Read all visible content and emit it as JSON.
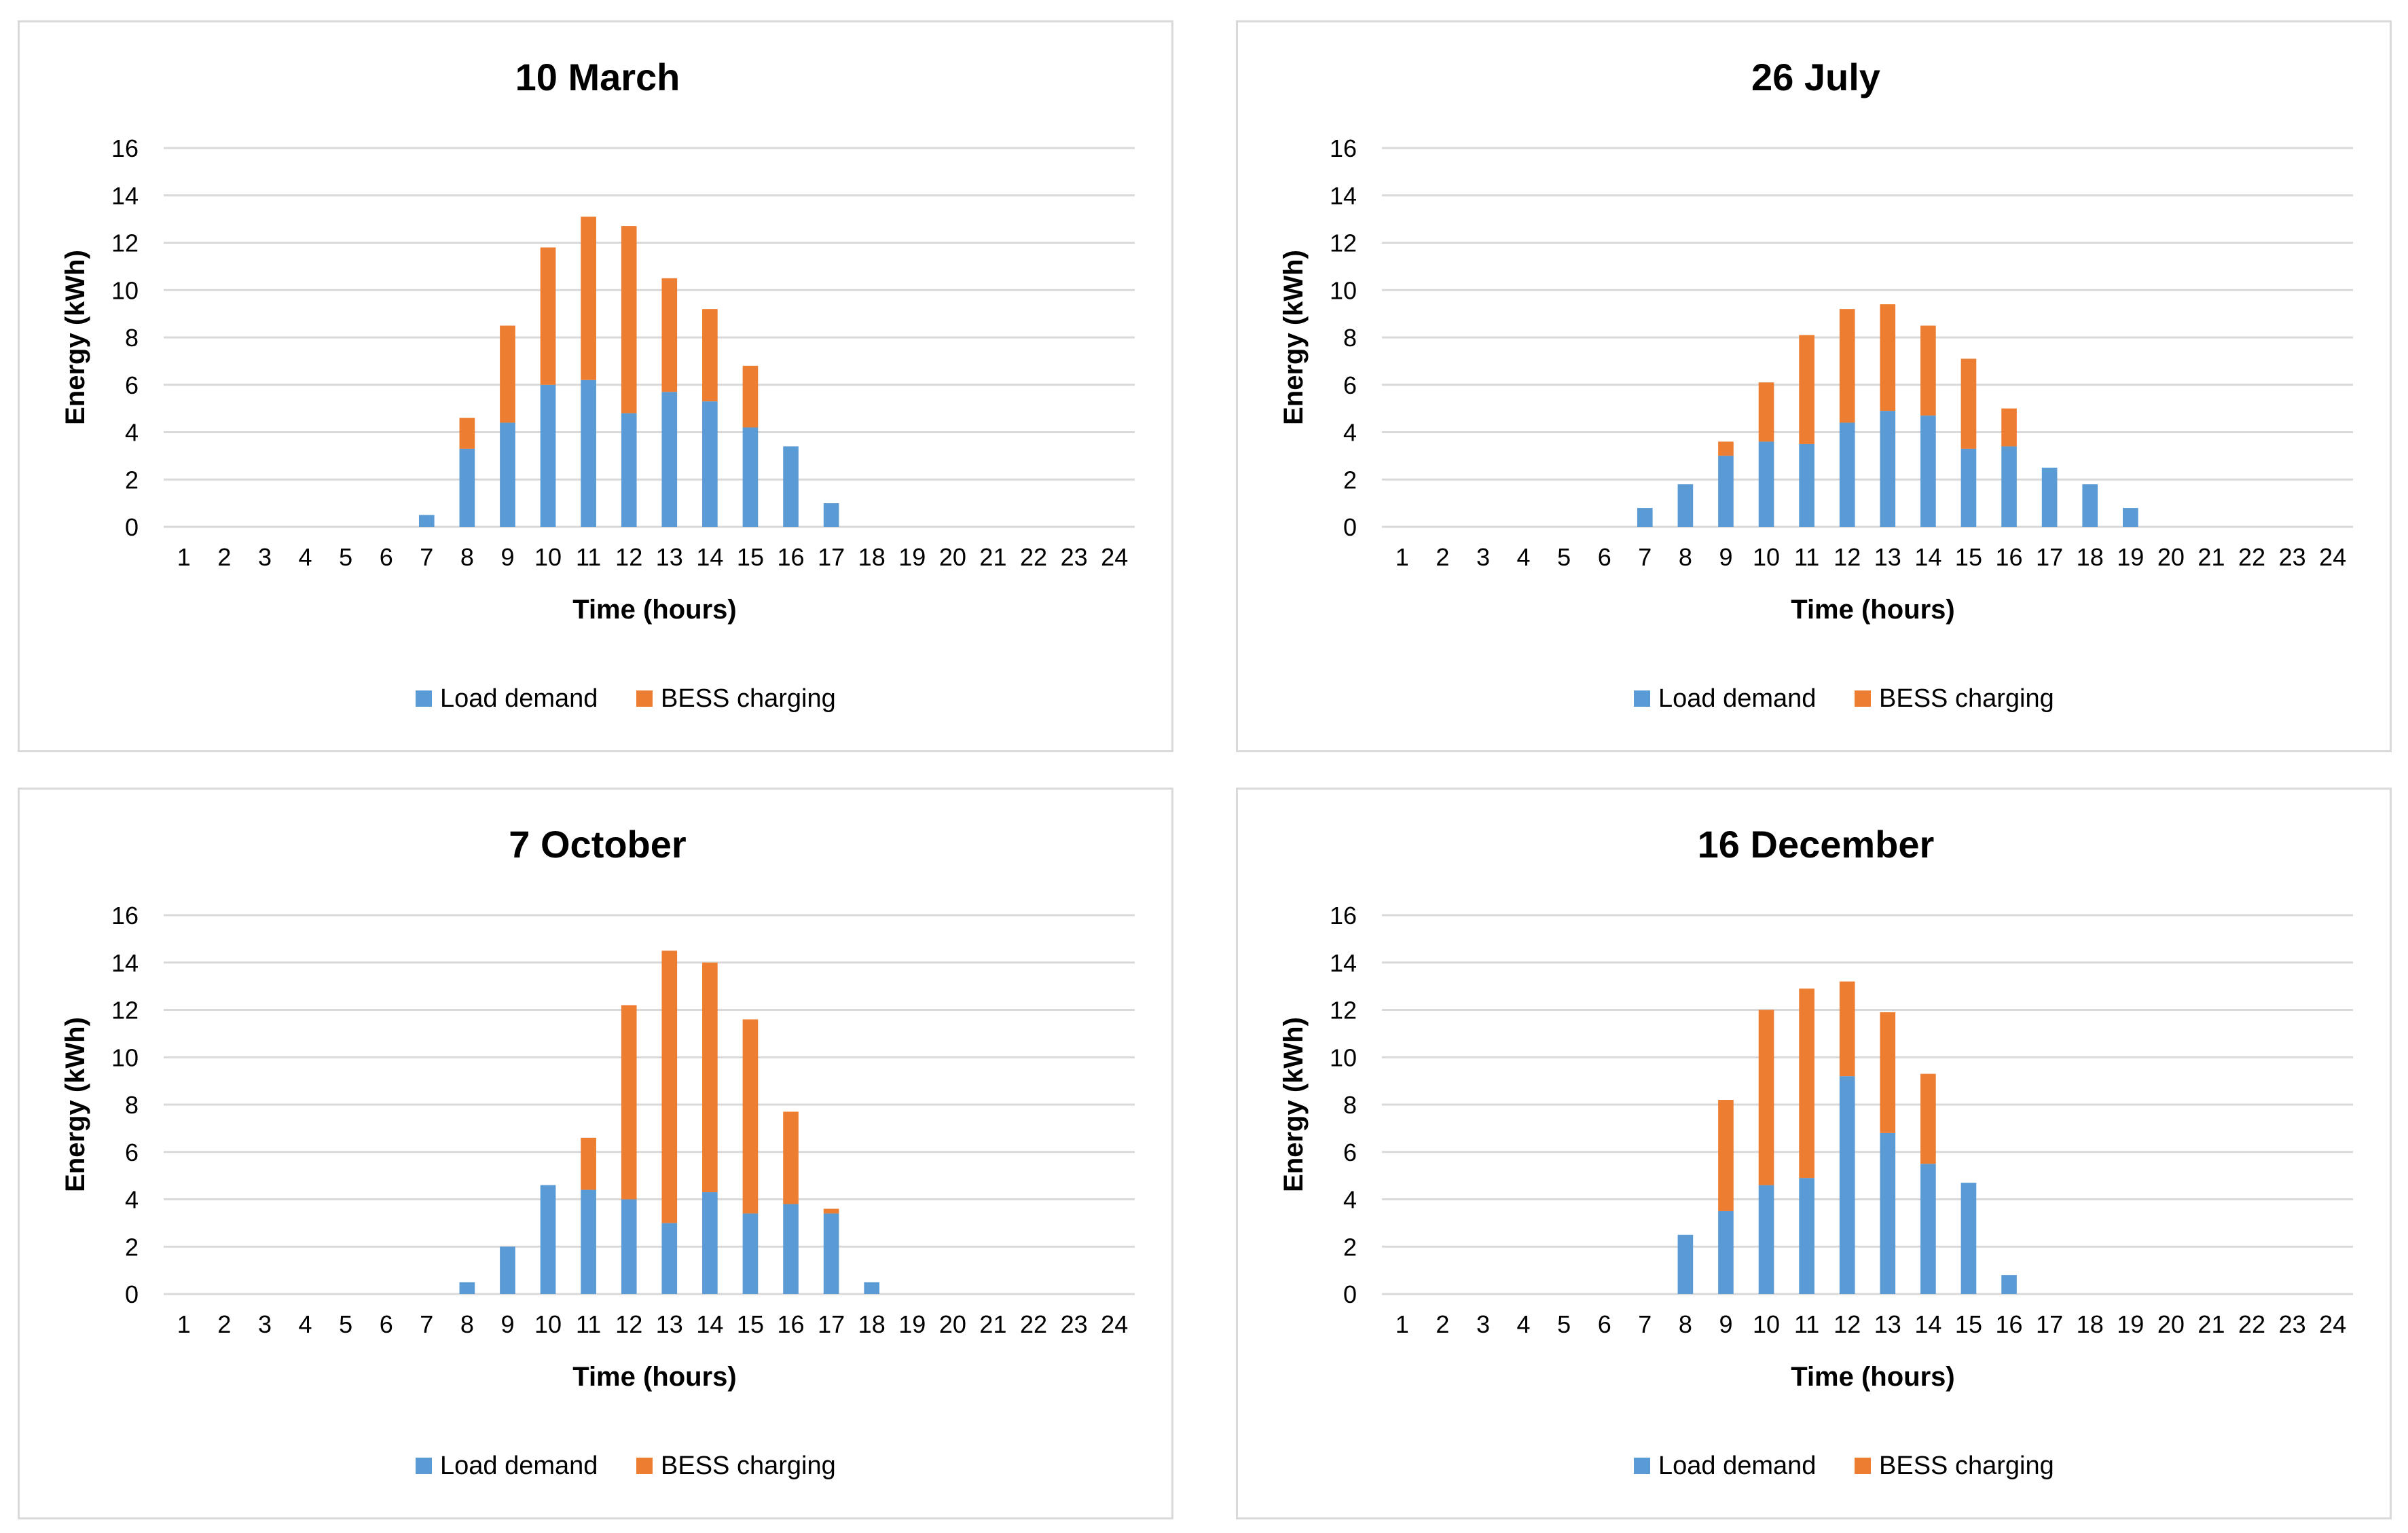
{
  "colors": {
    "load_demand": "#5B9BD5",
    "bess_charging": "#ED7D31",
    "gridline": "#d9d9d9",
    "panel_border": "#d9d9d9"
  },
  "chart_data": [
    {
      "type": "bar",
      "stacked": true,
      "title": "10 March",
      "xlabel": "Time (hours)",
      "ylabel": "Energy (kWh)",
      "ylim": [
        0,
        16
      ],
      "yticks": [
        "0",
        "2",
        "4",
        "6",
        "8",
        "10",
        "12",
        "14",
        "16"
      ],
      "grid": true,
      "legend_position": "bottom",
      "categories": [
        "1",
        "2",
        "3",
        "4",
        "5",
        "6",
        "7",
        "8",
        "9",
        "10",
        "11",
        "12",
        "13",
        "14",
        "15",
        "16",
        "17",
        "18",
        "19",
        "20",
        "21",
        "22",
        "23",
        "24"
      ],
      "series": [
        {
          "name": "Load demand",
          "color": "#5B9BD5",
          "values": [
            0,
            0,
            0,
            0,
            0,
            0,
            0.5,
            3.3,
            4.4,
            6.0,
            6.2,
            4.8,
            5.7,
            5.3,
            4.2,
            3.4,
            1.0,
            0,
            0,
            0,
            0,
            0,
            0,
            0
          ]
        },
        {
          "name": "BESS charging",
          "color": "#ED7D31",
          "values": [
            0,
            0,
            0,
            0,
            0,
            0,
            0,
            1.3,
            4.1,
            5.8,
            6.9,
            7.9,
            4.8,
            3.9,
            2.6,
            0,
            0,
            0,
            0,
            0,
            0,
            0,
            0,
            0
          ]
        }
      ]
    },
    {
      "type": "bar",
      "stacked": true,
      "title": "26 July",
      "xlabel": "Time (hours)",
      "ylabel": "Energy (kWh)",
      "ylim": [
        0,
        16
      ],
      "yticks": [
        "0",
        "2",
        "4",
        "6",
        "8",
        "10",
        "12",
        "14",
        "16"
      ],
      "grid": true,
      "legend_position": "bottom",
      "categories": [
        "1",
        "2",
        "3",
        "4",
        "5",
        "6",
        "7",
        "8",
        "9",
        "10",
        "11",
        "12",
        "13",
        "14",
        "15",
        "16",
        "17",
        "18",
        "19",
        "20",
        "21",
        "22",
        "23",
        "24"
      ],
      "series": [
        {
          "name": "Load demand",
          "color": "#5B9BD5",
          "values": [
            0,
            0,
            0,
            0,
            0,
            0,
            0.8,
            1.8,
            3.0,
            3.6,
            3.5,
            4.4,
            4.9,
            4.7,
            3.3,
            3.4,
            2.5,
            1.8,
            0.8,
            0,
            0,
            0,
            0,
            0
          ]
        },
        {
          "name": "BESS charging",
          "color": "#ED7D31",
          "values": [
            0,
            0,
            0,
            0,
            0,
            0,
            0,
            0,
            0.6,
            2.5,
            4.6,
            4.8,
            4.5,
            3.8,
            3.8,
            1.6,
            0,
            0,
            0,
            0,
            0,
            0,
            0,
            0
          ]
        }
      ]
    },
    {
      "type": "bar",
      "stacked": true,
      "title": "7 October",
      "xlabel": "Time (hours)",
      "ylabel": "Energy (kWh)",
      "ylim": [
        0,
        16
      ],
      "yticks": [
        "0",
        "2",
        "4",
        "6",
        "8",
        "10",
        "12",
        "14",
        "16"
      ],
      "grid": true,
      "legend_position": "bottom",
      "categories": [
        "1",
        "2",
        "3",
        "4",
        "5",
        "6",
        "7",
        "8",
        "9",
        "10",
        "11",
        "12",
        "13",
        "14",
        "15",
        "16",
        "17",
        "18",
        "19",
        "20",
        "21",
        "22",
        "23",
        "24"
      ],
      "series": [
        {
          "name": "Load demand",
          "color": "#5B9BD5",
          "values": [
            0,
            0,
            0,
            0,
            0,
            0,
            0,
            0.5,
            2.0,
            4.6,
            4.4,
            4.0,
            3.0,
            4.3,
            3.4,
            3.8,
            3.4,
            0.5,
            0,
            0,
            0,
            0,
            0,
            0
          ]
        },
        {
          "name": "BESS charging",
          "color": "#ED7D31",
          "values": [
            0,
            0,
            0,
            0,
            0,
            0,
            0,
            0,
            0,
            0,
            2.2,
            8.2,
            11.5,
            9.7,
            8.2,
            3.9,
            0.2,
            0,
            0,
            0,
            0,
            0,
            0,
            0
          ]
        }
      ]
    },
    {
      "type": "bar",
      "stacked": true,
      "title": "16 December",
      "xlabel": "Time (hours)",
      "ylabel": "Energy (kWh)",
      "ylim": [
        0,
        16
      ],
      "yticks": [
        "0",
        "2",
        "4",
        "6",
        "8",
        "10",
        "12",
        "14",
        "16"
      ],
      "grid": true,
      "legend_position": "bottom",
      "categories": [
        "1",
        "2",
        "3",
        "4",
        "5",
        "6",
        "7",
        "8",
        "9",
        "10",
        "11",
        "12",
        "13",
        "14",
        "15",
        "16",
        "17",
        "18",
        "19",
        "20",
        "21",
        "22",
        "23",
        "24"
      ],
      "series": [
        {
          "name": "Load demand",
          "color": "#5B9BD5",
          "values": [
            0,
            0,
            0,
            0,
            0,
            0,
            0,
            2.5,
            3.5,
            4.6,
            4.9,
            9.2,
            6.8,
            5.5,
            4.7,
            0.8,
            0,
            0,
            0,
            0,
            0,
            0,
            0,
            0
          ]
        },
        {
          "name": "BESS charging",
          "color": "#ED7D31",
          "values": [
            0,
            0,
            0,
            0,
            0,
            0,
            0,
            0,
            4.7,
            7.4,
            8.0,
            4.0,
            5.1,
            3.8,
            0,
            0,
            0,
            0,
            0,
            0,
            0,
            0,
            0,
            0
          ]
        }
      ]
    }
  ]
}
